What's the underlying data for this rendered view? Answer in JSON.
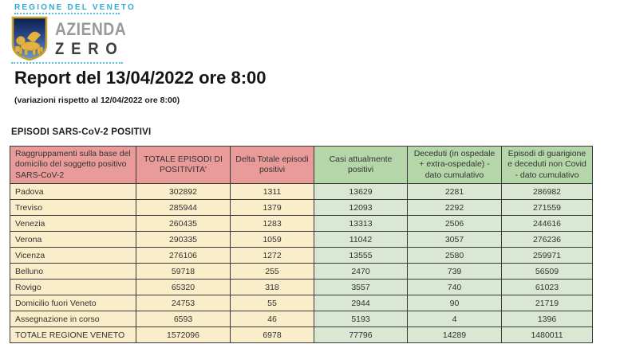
{
  "brand": {
    "region_label": "REGIONE DEL VENETO",
    "logo_line1": "AZIENDA",
    "logo_line2": "ZERO",
    "accent_blue": "#2fa9d6",
    "shield_icon": "veneto-winged-lion-shield"
  },
  "report": {
    "title": "Report del 13/04/2022 ore 8:00",
    "subtitle": "(variazioni rispetto al 12/04/2022 ore 8:00)",
    "section_heading": "EPISODI SARS-CoV-2 POSITIVI"
  },
  "table": {
    "columns": [
      {
        "label": "Raggruppamenti sulla base del domicilio del soggetto positivo SARS-CoV-2",
        "group": "red"
      },
      {
        "label": "TOTALE EPISODI DI POSITIVITA'",
        "group": "red"
      },
      {
        "label": "Delta Totale episodi positivi",
        "group": "red"
      },
      {
        "label": "Casi attualmente positivi",
        "group": "green"
      },
      {
        "label": "Deceduti (in ospedale + extra-ospedale) -dato cumulativo",
        "group": "green"
      },
      {
        "label": "Episodi di guarigione e deceduti non Covid - dato cumulativo",
        "group": "green"
      }
    ],
    "rows": [
      {
        "label": "Padova",
        "values": [
          "302892",
          "1311",
          "13629",
          "2281",
          "286982"
        ]
      },
      {
        "label": "Treviso",
        "values": [
          "285944",
          "1379",
          "12093",
          "2292",
          "271559"
        ]
      },
      {
        "label": "Venezia",
        "values": [
          "260435",
          "1283",
          "13313",
          "2506",
          "244616"
        ]
      },
      {
        "label": "Verona",
        "values": [
          "290335",
          "1059",
          "11042",
          "3057",
          "276236"
        ]
      },
      {
        "label": "Vicenza",
        "values": [
          "276106",
          "1272",
          "13555",
          "2580",
          "259971"
        ]
      },
      {
        "label": "Belluno",
        "values": [
          "59718",
          "255",
          "2470",
          "739",
          "56509"
        ]
      },
      {
        "label": "Rovigo",
        "values": [
          "65320",
          "318",
          "3557",
          "740",
          "61023"
        ]
      },
      {
        "label": "Domicilio fuori Veneto",
        "values": [
          "24753",
          "55",
          "2944",
          "90",
          "21719"
        ]
      },
      {
        "label": "Assegnazione in corso",
        "values": [
          "6593",
          "46",
          "5193",
          "4",
          "1396"
        ]
      },
      {
        "label": "TOTALE REGIONE VENETO",
        "values": [
          "1572096",
          "6978",
          "77796",
          "14289",
          "1480011"
        ]
      }
    ],
    "colors": {
      "header_red": "#e89b99",
      "header_green": "#b5d6a8",
      "cell_cream": "#f9edca",
      "cell_green": "#d9e7d3",
      "border": "#3a3a3a"
    }
  }
}
